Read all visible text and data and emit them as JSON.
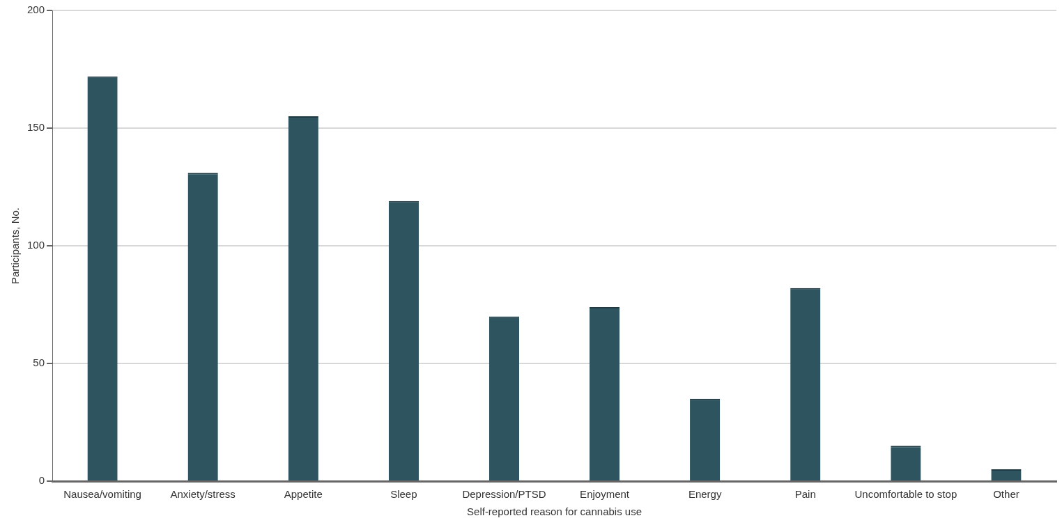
{
  "chart_data": {
    "type": "bar",
    "xlabel": "Self-reported reason for cannabis use",
    "ylabel": "Participants, No.",
    "categories": [
      "Nausea/vomiting",
      "Anxiety/stress",
      "Appetite",
      "Sleep",
      "Depression/PTSD",
      "Enjoyment",
      "Energy",
      "Pain",
      "Uncomfortable to stop",
      "Other"
    ],
    "values": [
      172,
      131,
      155,
      119,
      70,
      74,
      35,
      82,
      15,
      5
    ],
    "color": "#2e5460",
    "ylim": [
      0,
      200
    ],
    "yticks": [
      0,
      50,
      100,
      150,
      200
    ],
    "grid": "y",
    "legend": false
  }
}
